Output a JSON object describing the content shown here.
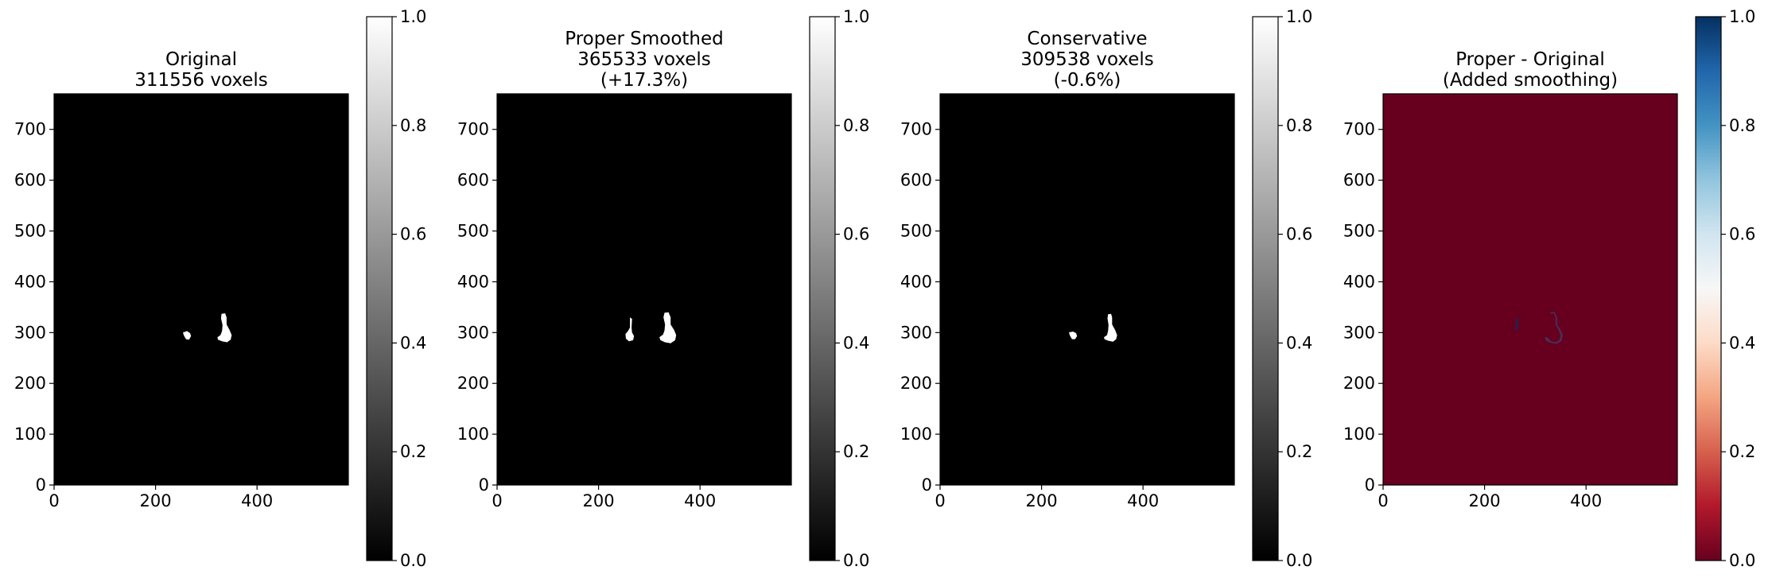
{
  "figure": {
    "panels": [
      {
        "title_lines": [
          "Original",
          "311556 voxels"
        ],
        "colormap": "gray",
        "background_color": "#000000"
      },
      {
        "title_lines": [
          "Proper Smoothed",
          "365533 voxels",
          "(+17.3%)"
        ],
        "colormap": "gray",
        "background_color": "#000000"
      },
      {
        "title_lines": [
          "Conservative",
          "309538 voxels",
          "(-0.6%)"
        ],
        "colormap": "gray",
        "background_color": "#000000"
      },
      {
        "title_lines": [
          "Proper - Original",
          "(Added smoothing)"
        ],
        "colormap": "RdBu",
        "background_color": "#67001f"
      }
    ]
  },
  "chart_data": [
    {
      "type": "heatmap",
      "title": "Original\n311556 voxels",
      "xlabel": "",
      "ylabel": "",
      "xlim": [
        0,
        580
      ],
      "ylim": [
        0,
        770
      ],
      "x_ticks": [
        0,
        200,
        400
      ],
      "y_ticks": [
        0,
        100,
        200,
        300,
        400,
        500,
        600,
        700
      ],
      "colorbar": {
        "cmap": "gray",
        "range": [
          0,
          1
        ],
        "ticks": [
          0.0,
          0.2,
          0.4,
          0.6,
          0.8,
          1.0
        ]
      },
      "grid": false,
      "background_value": 0,
      "blobs": [
        {
          "label": "small region",
          "value": 1,
          "outline": [
            [
              256,
              301
            ],
            [
              262,
              303
            ],
            [
              268,
              299
            ],
            [
              270,
              293
            ],
            [
              266,
              286
            ],
            [
              260,
              287
            ],
            [
              256,
              294
            ],
            [
              254,
              300
            ]
          ]
        },
        {
          "label": "large region",
          "value": 1,
          "outline": [
            [
              330,
              337
            ],
            [
              337,
              338
            ],
            [
              340,
              330
            ],
            [
              340,
              316
            ],
            [
              346,
              305
            ],
            [
              350,
              295
            ],
            [
              348,
              286
            ],
            [
              341,
              281
            ],
            [
              331,
              283
            ],
            [
              323,
              286
            ],
            [
              322,
              291
            ],
            [
              328,
              295
            ],
            [
              331,
              303
            ],
            [
              332,
              315
            ],
            [
              329,
              328
            ]
          ]
        }
      ]
    },
    {
      "type": "heatmap",
      "title": "Proper Smoothed\n365533 voxels\n(+17.3%)",
      "xlabel": "",
      "ylabel": "",
      "xlim": [
        0,
        580
      ],
      "ylim": [
        0,
        770
      ],
      "x_ticks": [
        0,
        200,
        400
      ],
      "y_ticks": [
        0,
        100,
        200,
        300,
        400,
        500,
        600,
        700
      ],
      "colorbar": {
        "cmap": "gray",
        "range": [
          0,
          1
        ],
        "ticks": [
          0.0,
          0.2,
          0.4,
          0.6,
          0.8,
          1.0
        ]
      },
      "grid": false,
      "background_value": 0,
      "blobs": [
        {
          "label": "small region",
          "value": 1,
          "outline": [
            [
              262,
              330
            ],
            [
              266,
              327
            ],
            [
              265,
              310
            ],
            [
              266,
              300
            ],
            [
              270,
              293
            ],
            [
              268,
              285
            ],
            [
              260,
              283
            ],
            [
              254,
              288
            ],
            [
              253,
              297
            ],
            [
              258,
              303
            ],
            [
              262,
              310
            ]
          ]
        },
        {
          "label": "large region",
          "value": 1,
          "outline": [
            [
              330,
              339
            ],
            [
              338,
              340
            ],
            [
              342,
              330
            ],
            [
              342,
              316
            ],
            [
              349,
              305
            ],
            [
              353,
              295
            ],
            [
              351,
              285
            ],
            [
              342,
              279
            ],
            [
              331,
              281
            ],
            [
              322,
              285
            ],
            [
              320,
              291
            ],
            [
              327,
              296
            ],
            [
              330,
              304
            ],
            [
              331,
              316
            ],
            [
              328,
              330
            ]
          ]
        }
      ]
    },
    {
      "type": "heatmap",
      "title": "Conservative\n309538 voxels\n(-0.6%)",
      "xlabel": "",
      "ylabel": "",
      "xlim": [
        0,
        580
      ],
      "ylim": [
        0,
        770
      ],
      "x_ticks": [
        0,
        200,
        400
      ],
      "y_ticks": [
        0,
        100,
        200,
        300,
        400,
        500,
        600,
        700
      ],
      "colorbar": {
        "cmap": "gray",
        "range": [
          0,
          1
        ],
        "ticks": [
          0.0,
          0.2,
          0.4,
          0.6,
          0.8,
          1.0
        ]
      },
      "grid": false,
      "background_value": 0,
      "blobs": [
        {
          "label": "small region",
          "value": 1,
          "outline": [
            [
              256,
              301
            ],
            [
              262,
              302
            ],
            [
              268,
              299
            ],
            [
              270,
              293
            ],
            [
              266,
              287
            ],
            [
              260,
              287
            ],
            [
              256,
              294
            ],
            [
              254,
              300
            ]
          ]
        },
        {
          "label": "large region",
          "value": 1,
          "outline": [
            [
              331,
              336
            ],
            [
              337,
              337
            ],
            [
              339,
              330
            ],
            [
              339,
              316
            ],
            [
              345,
              305
            ],
            [
              349,
              295
            ],
            [
              347,
              287
            ],
            [
              341,
              282
            ],
            [
              331,
              284
            ],
            [
              324,
              287
            ],
            [
              323,
              291
            ],
            [
              329,
              295
            ],
            [
              331,
              303
            ],
            [
              332,
              315
            ],
            [
              330,
              328
            ]
          ]
        }
      ]
    },
    {
      "type": "heatmap",
      "title": "Proper - Original\n(Added smoothing)",
      "xlabel": "",
      "ylabel": "",
      "xlim": [
        0,
        580
      ],
      "ylim": [
        0,
        770
      ],
      "x_ticks": [
        0,
        200,
        400
      ],
      "y_ticks": [
        0,
        100,
        200,
        300,
        400,
        500,
        600,
        700
      ],
      "colorbar": {
        "cmap": "RdBu",
        "range": [
          0,
          1
        ],
        "ticks": [
          0.0,
          0.2,
          0.4,
          0.6,
          0.8,
          1.0
        ]
      },
      "grid": false,
      "background_value": 0,
      "blobs": [
        {
          "label": "added stem",
          "value": 1,
          "outline": [
            [
              262,
              330
            ],
            [
              266,
              327
            ],
            [
              265,
              310
            ],
            [
              262,
              303
            ],
            [
              260,
              308
            ],
            [
              262,
              318
            ]
          ]
        },
        {
          "label": "added outline",
          "value": 0.8,
          "outline": [
            [
              329,
              339
            ],
            [
              338,
              341
            ],
            [
              343,
              330
            ],
            [
              343,
              316
            ],
            [
              350,
              305
            ],
            [
              354,
              295
            ],
            [
              352,
              284
            ],
            [
              342,
              278
            ],
            [
              330,
              280
            ],
            [
              321,
              284
            ],
            [
              319,
              291
            ],
            [
              323,
              291
            ],
            [
              331,
              283
            ],
            [
              341,
              281
            ],
            [
              348,
              286
            ],
            [
              350,
              295
            ],
            [
              346,
              305
            ],
            [
              340,
              316
            ],
            [
              340,
              330
            ],
            [
              337,
              338
            ],
            [
              330,
              337
            ]
          ]
        }
      ]
    }
  ]
}
